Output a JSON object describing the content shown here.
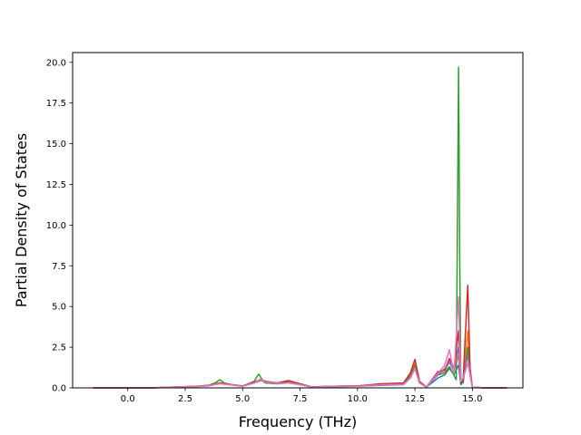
{
  "chart_data": {
    "type": "line",
    "title": "",
    "xlabel": "Frequency (THz)",
    "ylabel": "Partial Density of States",
    "xlim": [
      -2.4,
      17.2
    ],
    "ylim": [
      0,
      20.6
    ],
    "x_ticks": [
      0.0,
      2.5,
      5.0,
      7.5,
      10.0,
      12.5,
      15.0
    ],
    "x_tick_labels": [
      "0.0",
      "2.5",
      "5.0",
      "7.5",
      "10.0",
      "12.5",
      "15.0"
    ],
    "y_ticks": [
      0.0,
      2.5,
      5.0,
      7.5,
      10.0,
      12.5,
      15.0,
      17.5,
      20.0
    ],
    "y_tick_labels": [
      "0.0",
      "2.5",
      "5.0",
      "7.5",
      "10.0",
      "12.5",
      "15.0",
      "17.5",
      "20.0"
    ],
    "grid": false,
    "legend": false,
    "series": [
      {
        "color": "#1f77b4",
        "x": [
          -1.5,
          0.0,
          1.0,
          2.0,
          3.0,
          3.5,
          4.0,
          4.5,
          5.0,
          5.5,
          5.8,
          6.0,
          6.5,
          7.0,
          7.5,
          8.0,
          9.0,
          10.0,
          11.0,
          12.0,
          12.3,
          12.5,
          12.7,
          13.0,
          13.5,
          13.8,
          14.0,
          14.2,
          14.4,
          14.5,
          14.6,
          14.8,
          14.9,
          15.0,
          15.5,
          16.5
        ],
        "y": [
          0,
          0,
          0,
          0.03,
          0.08,
          0.12,
          0.28,
          0.18,
          0.1,
          0.3,
          0.5,
          0.3,
          0.25,
          0.3,
          0.2,
          0.05,
          0.08,
          0.1,
          0.15,
          0.2,
          0.6,
          1.2,
          0.3,
          0.05,
          0.6,
          0.8,
          1.2,
          0.8,
          1.4,
          0.2,
          0.4,
          2.5,
          0.8,
          0.05,
          0,
          0
        ]
      },
      {
        "color": "#ff7f0e",
        "x": [
          -1.5,
          0.0,
          1.0,
          2.0,
          3.0,
          3.5,
          4.0,
          4.5,
          5.0,
          5.5,
          5.8,
          6.0,
          6.5,
          7.0,
          7.5,
          8.0,
          9.0,
          10.0,
          11.0,
          12.0,
          12.3,
          12.5,
          12.7,
          13.0,
          13.5,
          13.8,
          14.0,
          14.2,
          14.4,
          14.5,
          14.6,
          14.8,
          14.9,
          15.0,
          15.5,
          16.5
        ],
        "y": [
          0,
          0,
          0,
          0.05,
          0.1,
          0.15,
          0.3,
          0.2,
          0.12,
          0.35,
          0.55,
          0.4,
          0.3,
          0.35,
          0.25,
          0.06,
          0.1,
          0.12,
          0.2,
          0.25,
          0.8,
          1.5,
          0.35,
          0.05,
          0.9,
          1.0,
          1.6,
          1.0,
          2.0,
          0.3,
          0.5,
          3.5,
          1.0,
          0.05,
          0,
          0
        ]
      },
      {
        "color": "#2ca02c",
        "x": [
          -1.5,
          0.0,
          1.0,
          2.0,
          3.0,
          3.5,
          3.8,
          4.0,
          4.2,
          4.5,
          5.0,
          5.5,
          5.7,
          5.9,
          6.0,
          6.5,
          7.0,
          7.5,
          8.0,
          9.0,
          10.0,
          11.0,
          12.0,
          12.3,
          12.5,
          12.7,
          13.0,
          13.5,
          13.8,
          14.0,
          14.3,
          14.4,
          14.45,
          14.5,
          14.6,
          14.8,
          14.9,
          15.0,
          15.5,
          16.5
        ],
        "y": [
          0,
          0,
          0,
          0.05,
          0.1,
          0.15,
          0.3,
          0.5,
          0.3,
          0.2,
          0.1,
          0.4,
          0.85,
          0.4,
          0.3,
          0.3,
          0.4,
          0.25,
          0.06,
          0.1,
          0.12,
          0.2,
          0.25,
          0.7,
          1.4,
          0.3,
          0.05,
          0.8,
          0.9,
          1.3,
          0.5,
          19.7,
          8.0,
          0.5,
          0.3,
          2.5,
          0.9,
          0.05,
          0,
          0
        ]
      },
      {
        "color": "#d62728",
        "x": [
          -1.5,
          0.0,
          1.0,
          2.0,
          3.0,
          3.5,
          4.0,
          4.5,
          5.0,
          5.5,
          5.8,
          6.0,
          6.5,
          7.0,
          7.5,
          8.0,
          9.0,
          10.0,
          11.0,
          12.0,
          12.3,
          12.5,
          12.7,
          13.0,
          13.5,
          13.8,
          14.0,
          14.2,
          14.4,
          14.5,
          14.6,
          14.8,
          14.9,
          15.0,
          15.5,
          16.5
        ],
        "y": [
          0,
          0,
          0,
          0.05,
          0.1,
          0.15,
          0.3,
          0.2,
          0.12,
          0.35,
          0.5,
          0.4,
          0.3,
          0.45,
          0.25,
          0.06,
          0.1,
          0.12,
          0.25,
          0.3,
          0.9,
          1.75,
          0.4,
          0.05,
          1.0,
          1.1,
          1.8,
          1.2,
          3.5,
          0.3,
          0.5,
          6.3,
          1.2,
          0.05,
          0,
          0
        ]
      },
      {
        "color": "#9467bd",
        "x": [
          -1.5,
          0.0,
          1.0,
          2.0,
          3.0,
          3.5,
          4.0,
          4.5,
          5.0,
          5.5,
          5.8,
          6.0,
          6.5,
          7.0,
          7.5,
          8.0,
          9.0,
          10.0,
          11.0,
          12.0,
          12.3,
          12.5,
          12.7,
          13.0,
          13.5,
          13.8,
          14.0,
          14.2,
          14.4,
          14.5,
          14.6,
          14.8,
          14.9,
          15.0,
          15.5,
          16.5
        ],
        "y": [
          0,
          0,
          0,
          0.04,
          0.08,
          0.13,
          0.25,
          0.18,
          0.1,
          0.3,
          0.45,
          0.35,
          0.28,
          0.3,
          0.2,
          0.05,
          0.08,
          0.1,
          0.18,
          0.22,
          0.6,
          1.2,
          0.3,
          0.05,
          0.8,
          1.2,
          1.6,
          1.0,
          2.5,
          0.4,
          0.6,
          2.0,
          0.8,
          0.05,
          0,
          0
        ]
      },
      {
        "color": "#e377c2",
        "x": [
          -1.5,
          0.0,
          1.0,
          2.0,
          3.0,
          3.5,
          4.0,
          4.5,
          5.0,
          5.5,
          5.8,
          6.0,
          6.5,
          7.0,
          7.5,
          8.0,
          9.0,
          10.0,
          11.0,
          12.0,
          12.3,
          12.5,
          12.7,
          13.0,
          13.5,
          13.8,
          14.0,
          14.2,
          14.4,
          14.5,
          14.6,
          14.8,
          14.9,
          15.0,
          15.5,
          16.5
        ],
        "y": [
          0,
          0,
          0,
          0.04,
          0.08,
          0.13,
          0.25,
          0.18,
          0.1,
          0.3,
          0.55,
          0.35,
          0.28,
          0.3,
          0.2,
          0.05,
          0.08,
          0.1,
          0.18,
          0.22,
          0.6,
          1.2,
          0.3,
          0.05,
          0.9,
          1.4,
          2.35,
          0.9,
          5.6,
          0.4,
          0.6,
          1.5,
          0.8,
          0.05,
          0,
          0
        ]
      }
    ]
  }
}
